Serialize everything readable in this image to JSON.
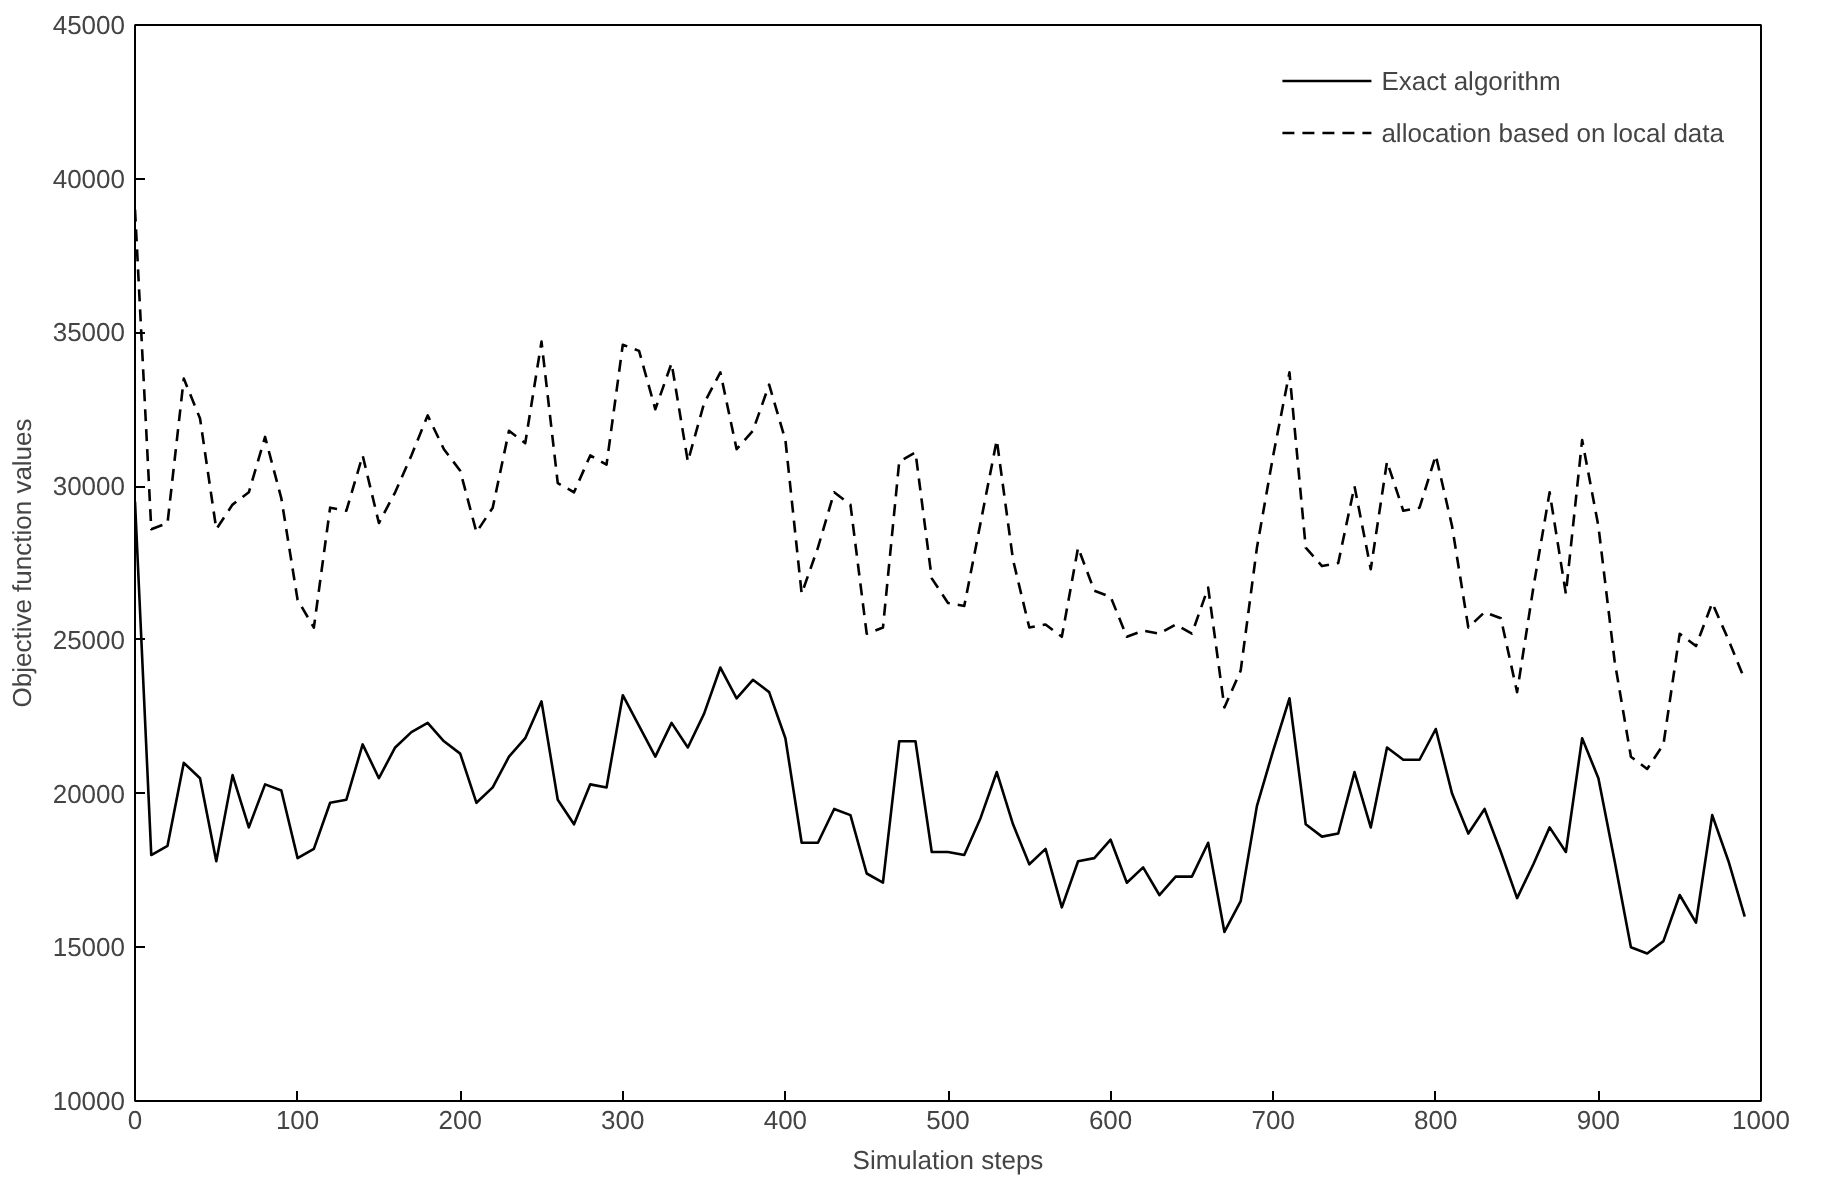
{
  "chart_data": {
    "type": "line",
    "xlabel": "Simulation steps",
    "ylabel": "Objective function values",
    "x": [
      0,
      10,
      20,
      30,
      40,
      50,
      60,
      70,
      80,
      90,
      100,
      110,
      120,
      130,
      140,
      150,
      160,
      170,
      180,
      190,
      200,
      210,
      220,
      230,
      240,
      250,
      260,
      270,
      280,
      290,
      300,
      310,
      320,
      330,
      340,
      350,
      360,
      370,
      380,
      390,
      400,
      410,
      420,
      430,
      440,
      450,
      460,
      470,
      480,
      490,
      500,
      510,
      520,
      530,
      540,
      550,
      560,
      570,
      580,
      590,
      600,
      610,
      620,
      630,
      640,
      650,
      660,
      670,
      680,
      690,
      700,
      710,
      720,
      730,
      740,
      750,
      760,
      770,
      780,
      790,
      800,
      810,
      820,
      830,
      840,
      850,
      860,
      870,
      880,
      890,
      900,
      910,
      920,
      930,
      940,
      950,
      960,
      970,
      980,
      990
    ],
    "series": [
      {
        "name": "Exact algorithm",
        "color": "#000000",
        "line_style": "solid",
        "values": [
          29500,
          18000,
          18300,
          21000,
          20500,
          17800,
          20600,
          18900,
          20300,
          20100,
          17900,
          18200,
          19700,
          19800,
          21600,
          20500,
          21500,
          22000,
          22300,
          21700,
          21300,
          19700,
          20200,
          21200,
          21800,
          23000,
          19800,
          19000,
          20300,
          20200,
          23200,
          22200,
          21200,
          22300,
          21500,
          22600,
          24100,
          23100,
          23700,
          23300,
          21800,
          18400,
          18400,
          19500,
          19300,
          17400,
          17100,
          21700,
          21700,
          18100,
          18100,
          18000,
          19200,
          20700,
          19000,
          17700,
          18200,
          16300,
          17800,
          17900,
          18500,
          17100,
          17600,
          16700,
          17300,
          17300,
          18400,
          15500,
          16500,
          19600,
          21400,
          23100,
          19000,
          18600,
          18700,
          20700,
          18900,
          21500,
          21100,
          21100,
          22100,
          20000,
          18700,
          19500,
          18100,
          16600,
          17700,
          18900,
          18100,
          21800,
          20500,
          17800,
          15000,
          14800,
          15200,
          16700,
          15800,
          19300,
          17800,
          16000
        ]
      },
      {
        "name": "allocation based on local data",
        "color": "#000000",
        "line_style": "dashed",
        "values": [
          39000,
          28600,
          28800,
          33500,
          32200,
          28600,
          29400,
          29800,
          31600,
          29600,
          26300,
          25400,
          29300,
          29200,
          31000,
          28800,
          29800,
          31000,
          32300,
          31200,
          30500,
          28500,
          29300,
          31800,
          31400,
          34700,
          30100,
          29800,
          31000,
          30700,
          34600,
          34400,
          32500,
          34000,
          30800,
          32700,
          33700,
          31200,
          31800,
          33300,
          31500,
          26500,
          28000,
          29800,
          29400,
          25200,
          25400,
          30800,
          31100,
          27000,
          26200,
          26100,
          28800,
          31500,
          27600,
          25400,
          25500,
          25100,
          28000,
          26600,
          26400,
          25100,
          25300,
          25200,
          25500,
          25200,
          26700,
          22800,
          24000,
          28000,
          31000,
          33700,
          28000,
          27400,
          27500,
          30000,
          27300,
          30800,
          29200,
          29300,
          31000,
          28700,
          25400,
          25900,
          25700,
          23300,
          26700,
          29800,
          26500,
          31500,
          28700,
          24300,
          21200,
          20800,
          21600,
          25200,
          24800,
          26200,
          25000,
          23700
        ]
      }
    ],
    "xlim": [
      0,
      1000
    ],
    "xticks": [
      0,
      100,
      200,
      300,
      400,
      500,
      600,
      700,
      800,
      900,
      1000
    ],
    "ylim": [
      10000,
      45000
    ],
    "yticks": [
      10000,
      15000,
      20000,
      25000,
      30000,
      35000,
      40000,
      45000
    ],
    "grid": false,
    "legend": "top right",
    "marker": "none"
  }
}
